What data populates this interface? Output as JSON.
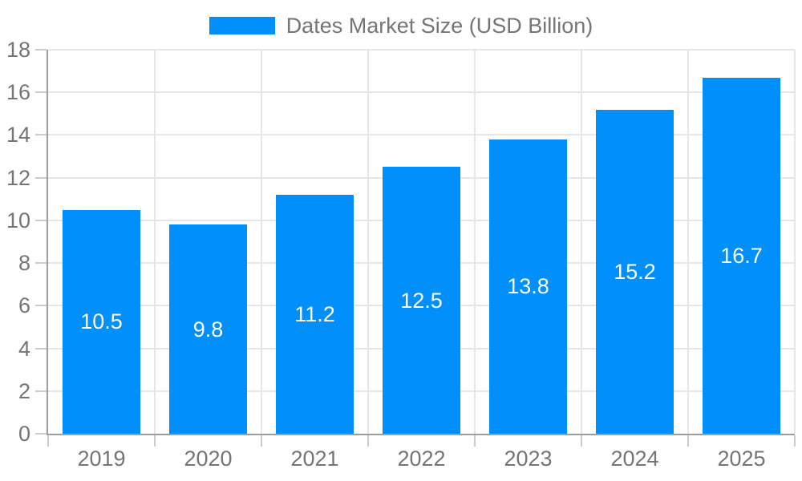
{
  "legend": {
    "label": "Dates Market Size (USD Billion)"
  },
  "colors": {
    "bar": "#008FFB",
    "bar_label": "#ffffff",
    "axis_label": "#757575",
    "grid": "#e6e6e6",
    "axis_line": "#9e9e9e",
    "tick": "#cccccc",
    "background": "#ffffff"
  },
  "chart_data": {
    "type": "bar",
    "title": "Dates Market Size (USD Billion)",
    "categories": [
      "2019",
      "2020",
      "2021",
      "2022",
      "2023",
      "2024",
      "2025"
    ],
    "values": [
      10.5,
      9.8,
      11.2,
      12.5,
      13.8,
      15.2,
      16.7
    ],
    "xlabel": "",
    "ylabel": "",
    "ylim": [
      0,
      18
    ],
    "ytick_step": 2,
    "ytick_labels": [
      "0",
      "2",
      "4",
      "6",
      "8",
      "10",
      "12",
      "14",
      "16",
      "18"
    ],
    "grid": true,
    "legend_position": "top-center",
    "bar_labels_inside": true
  }
}
